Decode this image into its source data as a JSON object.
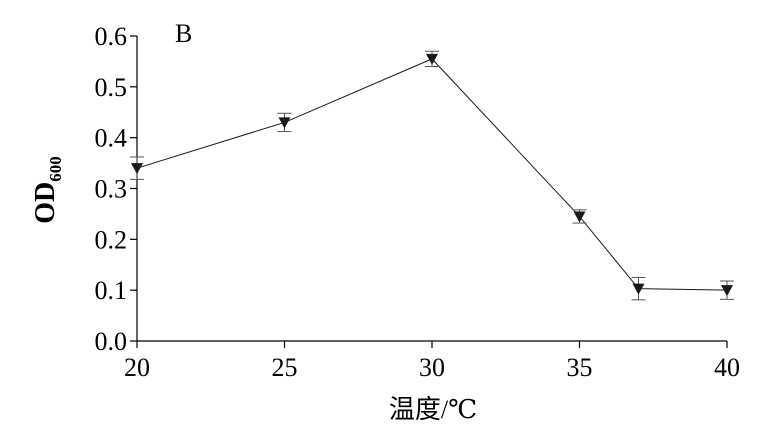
{
  "chart_data": {
    "type": "line",
    "panel_label": "B",
    "xlabel": "温度/℃",
    "ylabel": {
      "main": "OD",
      "subscript": "600"
    },
    "x_tick_labels": [
      "20",
      "25",
      "30",
      "35",
      "40"
    ],
    "y_tick_labels": [
      "0.0",
      "0.1",
      "0.2",
      "0.3",
      "0.4",
      "0.5",
      "0.6"
    ],
    "x_ticks": [
      20,
      25,
      30,
      35,
      40
    ],
    "y_ticks": [
      0.0,
      0.1,
      0.2,
      0.3,
      0.4,
      0.5,
      0.6
    ],
    "xlim": [
      20,
      40
    ],
    "ylim": [
      0,
      0.6
    ],
    "grid": false,
    "series": [
      {
        "marker": "down-triangle",
        "color": "#1a1a1a",
        "points": [
          {
            "x": 20,
            "y": 0.34,
            "err": 0.022
          },
          {
            "x": 25,
            "y": 0.43,
            "err": 0.018
          },
          {
            "x": 30,
            "y": 0.555,
            "err": 0.015
          },
          {
            "x": 35,
            "y": 0.245,
            "err": 0.013
          },
          {
            "x": 37,
            "y": 0.103,
            "err": 0.022
          },
          {
            "x": 40,
            "y": 0.1,
            "err": 0.018
          }
        ]
      }
    ]
  }
}
